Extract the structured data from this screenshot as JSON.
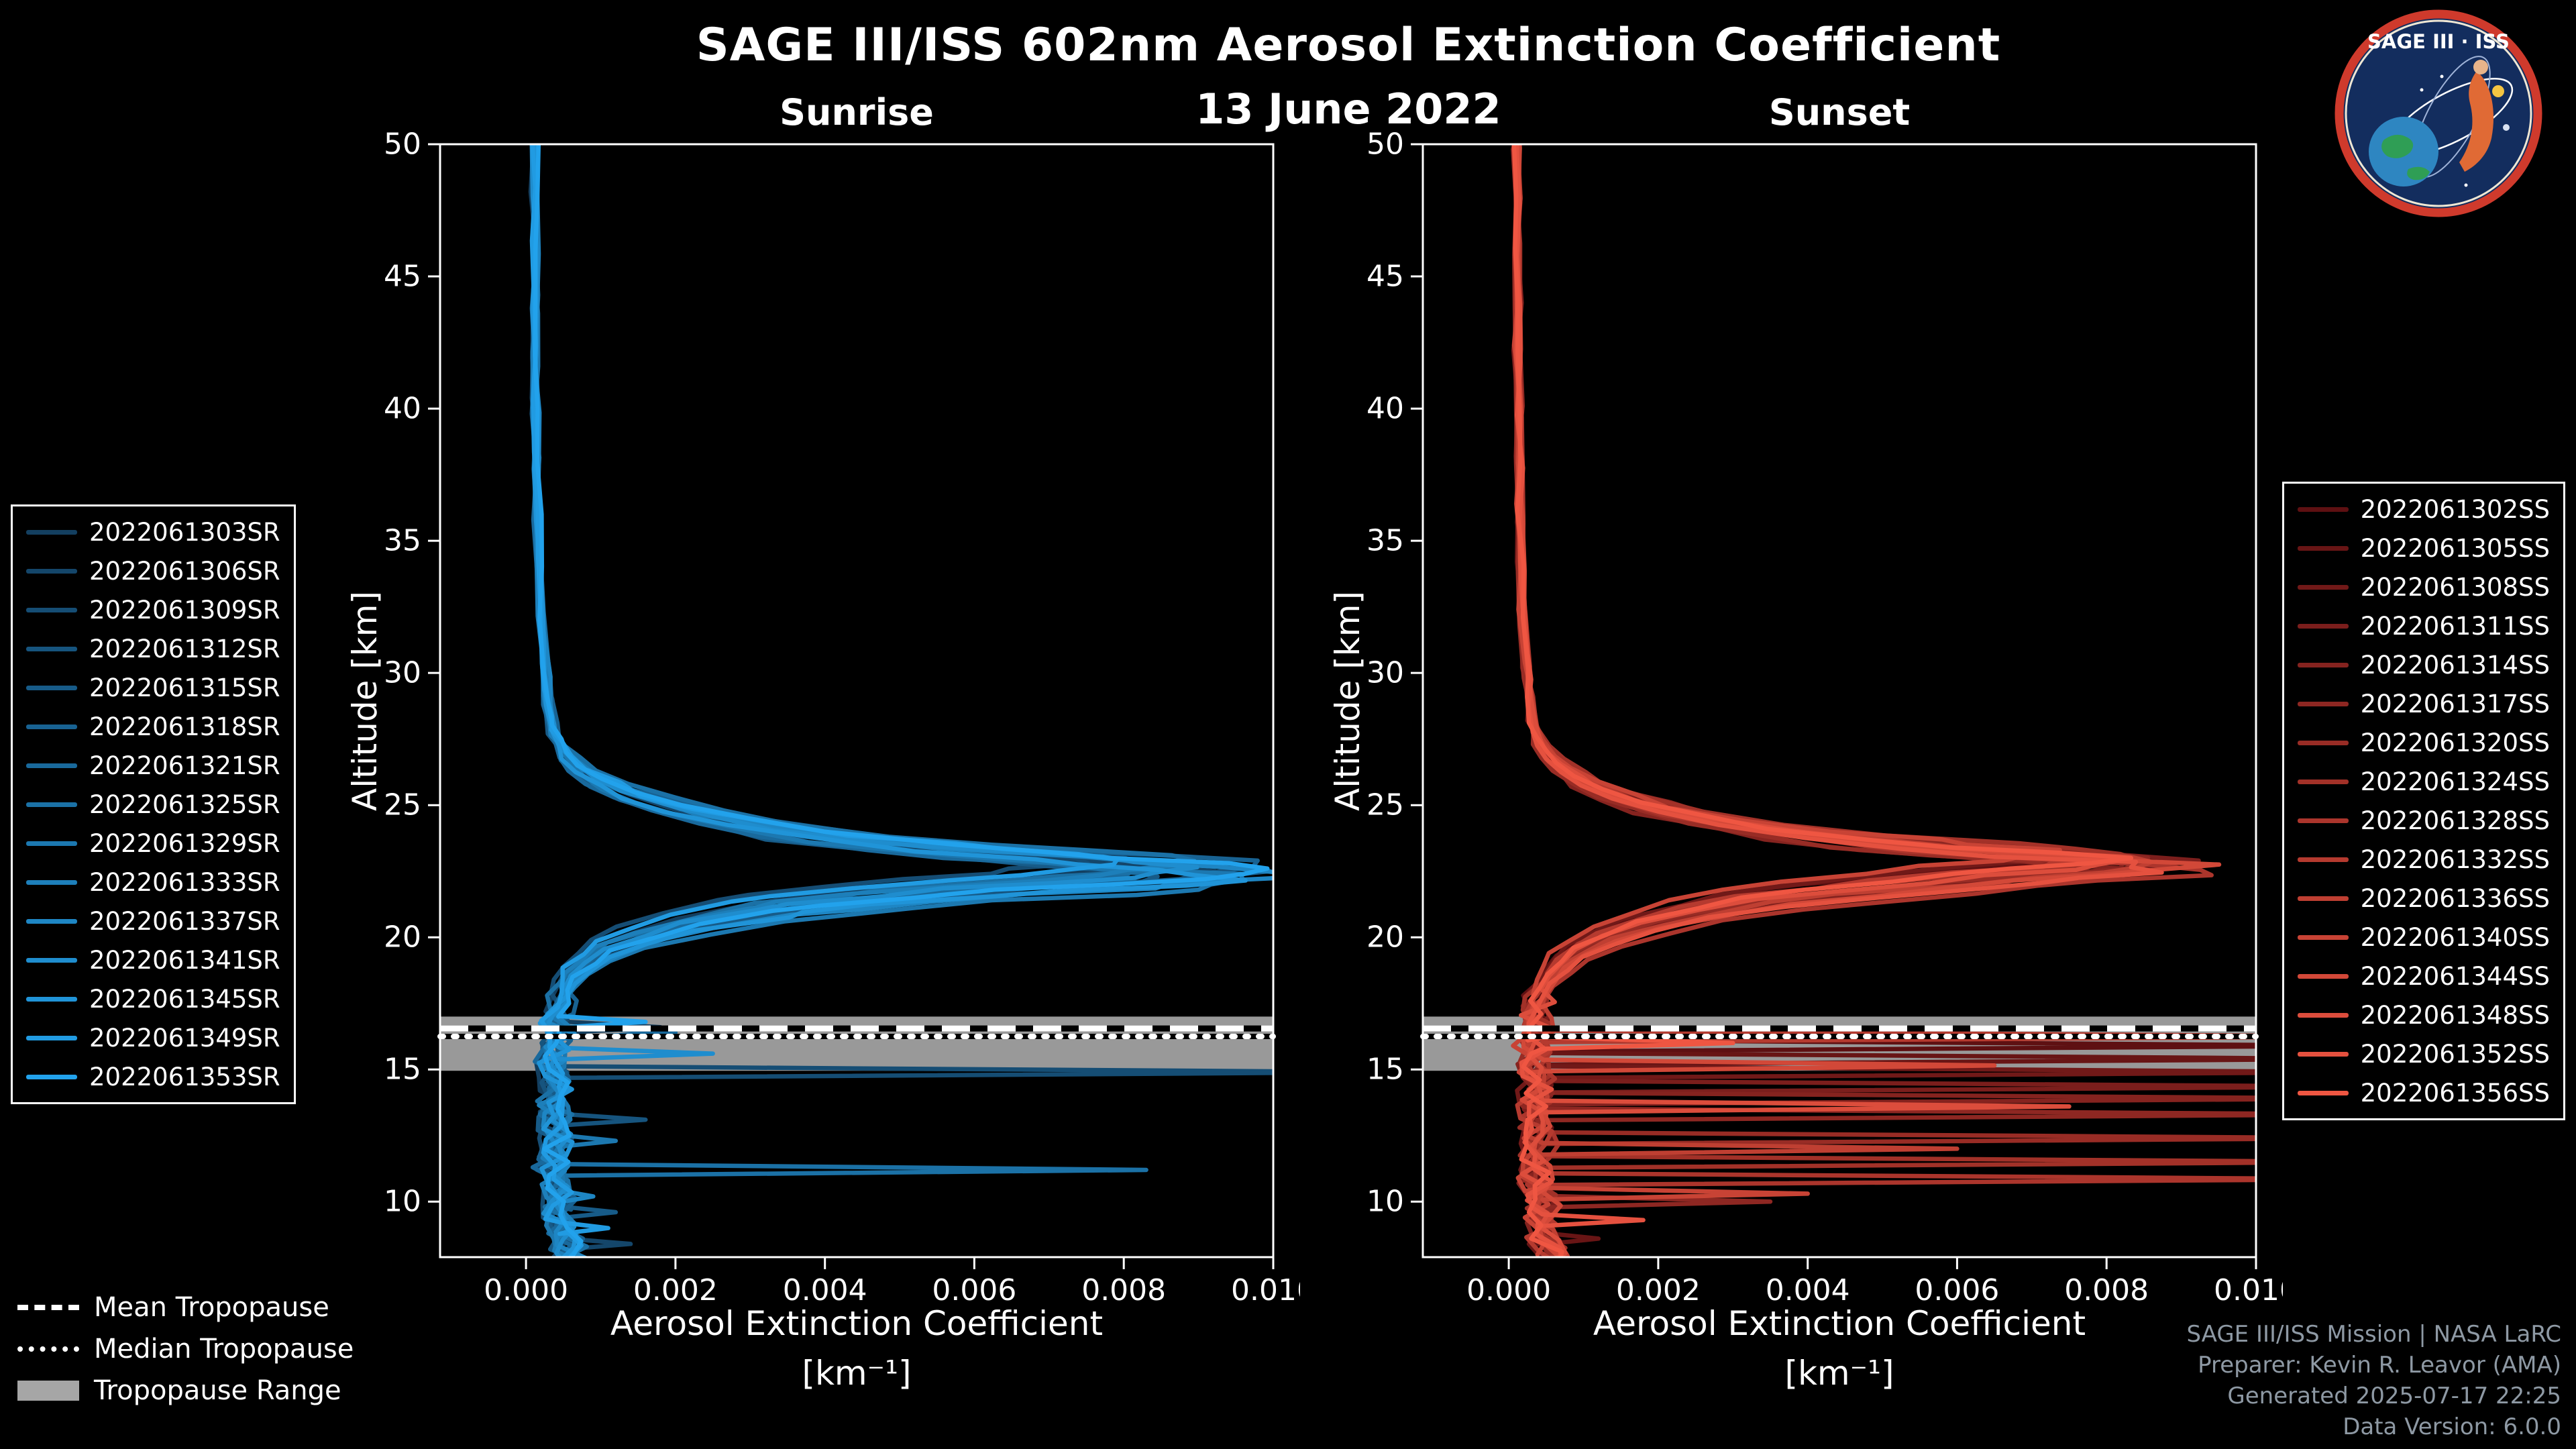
{
  "meta": {
    "title": "SAGE III/ISS 602nm Aerosol Extinction Coefficient",
    "date": "13 June 2022"
  },
  "logo": {
    "title": "SAGE III · ISS"
  },
  "trop_legend": {
    "items": [
      {
        "label": "Mean Tropopause",
        "style": "dashed"
      },
      {
        "label": "Median Tropopause",
        "style": "dotted"
      },
      {
        "label": "Tropopause Range",
        "style": "band"
      }
    ]
  },
  "footer": {
    "lines": [
      "SAGE III/ISS Mission | NASA LaRC",
      "Preparer: Kevin R. Leavor (AMA)",
      "Generated 2025-07-17 22:25",
      "Data Version: 6.0.0"
    ]
  },
  "chart_data": [
    {
      "type": "line",
      "title": "Sunrise",
      "ylabel": "Altitude [km]",
      "xlabel_line1": "Aerosol Extinction Coefficient",
      "xlabel_unit": "[km⁻¹]",
      "xlim": [
        -0.00115,
        0.01
      ],
      "ylim": [
        7.9,
        50
      ],
      "x_ticks": [
        0.0,
        0.002,
        0.004,
        0.006,
        0.008,
        0.01
      ],
      "x_tick_labels": [
        "0.000",
        "0.002",
        "0.004",
        "0.006",
        "0.008",
        "0.010"
      ],
      "y_ticks": [
        10,
        15,
        20,
        25,
        30,
        35,
        40,
        45,
        50
      ],
      "grid": false,
      "legend_position": "outside-left",
      "color_start": "#133f60",
      "color_end": "#22a2ec",
      "trop_color": "#a6a6a6",
      "tropopause": {
        "mean": 16.55,
        "median": 16.25,
        "range": [
          14.95,
          17.0
        ]
      },
      "noise": {
        "rel": 0.12,
        "abs": 0.00045,
        "alt_split": 17.5
      },
      "base_profile": [
        [
          51,
          0.00012
        ],
        [
          50,
          0.00012
        ],
        [
          48,
          0.00012
        ],
        [
          46,
          0.00012
        ],
        [
          44,
          0.00013
        ],
        [
          42,
          0.00013
        ],
        [
          40,
          0.00014
        ],
        [
          38,
          0.00015
        ],
        [
          36,
          0.00016
        ],
        [
          34,
          0.00018
        ],
        [
          32,
          0.0002
        ],
        [
          30,
          0.00026
        ],
        [
          29,
          0.0003
        ],
        [
          28,
          0.00036
        ],
        [
          27.5,
          0.00042
        ],
        [
          27,
          0.00052
        ],
        [
          26.5,
          0.0007
        ],
        [
          26,
          0.00098
        ],
        [
          25.5,
          0.0014
        ],
        [
          25,
          0.0019
        ],
        [
          24.5,
          0.0027
        ],
        [
          24,
          0.0037
        ],
        [
          23.5,
          0.0052
        ],
        [
          23.2,
          0.0066
        ],
        [
          23,
          0.0078
        ],
        [
          22.8,
          0.0088
        ],
        [
          22.6,
          0.0094
        ],
        [
          22.4,
          0.0091
        ],
        [
          22.2,
          0.0084
        ],
        [
          22,
          0.0074
        ],
        [
          21.8,
          0.0062
        ],
        [
          21.5,
          0.0049
        ],
        [
          21.2,
          0.0039
        ],
        [
          21,
          0.0033
        ],
        [
          20.5,
          0.0023
        ],
        [
          20,
          0.0016
        ],
        [
          19.5,
          0.0011
        ],
        [
          19,
          0.00082
        ],
        [
          18.5,
          0.00062
        ],
        [
          18,
          0.0005
        ],
        [
          17.5,
          0.00045
        ],
        [
          17,
          0.0004
        ],
        [
          16.5,
          0.00042
        ],
        [
          16,
          0.00038
        ],
        [
          15.5,
          0.00035
        ],
        [
          15,
          0.0004
        ],
        [
          14.5,
          0.00042
        ],
        [
          14,
          0.00038
        ],
        [
          13.5,
          0.00036
        ],
        [
          13,
          0.0004
        ],
        [
          12.5,
          0.00044
        ],
        [
          12,
          0.0004
        ],
        [
          11.5,
          0.00036
        ],
        [
          11,
          0.0004
        ],
        [
          10.5,
          0.00044
        ],
        [
          10,
          0.0005
        ],
        [
          9.5,
          0.00046
        ],
        [
          9,
          0.0005
        ],
        [
          8.5,
          0.00054
        ],
        [
          8,
          0.0006
        ],
        [
          7.6,
          0.00062
        ]
      ],
      "series": [
        {
          "name": "2022061303SR",
          "scale": 0.88,
          "alt_shift": 0.2,
          "spikes": [
            [
              16.6,
              0.0018
            ]
          ]
        },
        {
          "name": "2022061306SR",
          "scale": 0.97,
          "alt_shift": -0.1,
          "spikes": [
            [
              8.4,
              0.0014
            ]
          ]
        },
        {
          "name": "2022061309SR",
          "scale": 0.8,
          "alt_shift": 0.4,
          "spikes": [
            [
              14.9,
              0.0115
            ]
          ]
        },
        {
          "name": "2022061312SR",
          "scale": 1.02,
          "alt_shift": 0.0,
          "spikes": [
            [
              13.1,
              0.0016
            ]
          ]
        },
        {
          "name": "2022061315SR",
          "scale": 0.92,
          "alt_shift": -0.3,
          "spikes": [
            [
              9.6,
              0.0012
            ]
          ]
        },
        {
          "name": "2022061318SR",
          "scale": 1.06,
          "alt_shift": 0.1,
          "spikes": []
        },
        {
          "name": "2022061321SR",
          "scale": 0.85,
          "alt_shift": -0.2,
          "spikes": [
            [
              16.4,
              0.002
            ]
          ]
        },
        {
          "name": "2022061325SR",
          "scale": 0.99,
          "alt_shift": 0.3,
          "spikes": [
            [
              11.2,
              0.0083
            ]
          ]
        },
        {
          "name": "2022061329SR",
          "scale": 1.04,
          "alt_shift": -0.4,
          "spikes": [
            [
              12.3,
              0.0012
            ]
          ]
        },
        {
          "name": "2022061333SR",
          "scale": 0.9,
          "alt_shift": 0.15,
          "spikes": []
        },
        {
          "name": "2022061337SR",
          "scale": 1.08,
          "alt_shift": -0.15,
          "spikes": [
            [
              10.2,
              0.0009
            ]
          ]
        },
        {
          "name": "2022061341SR",
          "scale": 0.94,
          "alt_shift": 0.05,
          "spikes": [
            [
              15.6,
              0.0025
            ]
          ]
        },
        {
          "name": "2022061345SR",
          "scale": 1.0,
          "alt_shift": -0.25,
          "spikes": []
        },
        {
          "name": "2022061349SR",
          "scale": 0.87,
          "alt_shift": 0.35,
          "spikes": [
            [
              9.0,
              0.0011
            ]
          ]
        },
        {
          "name": "2022061353SR",
          "scale": 1.05,
          "alt_shift": 0.0,
          "spikes": [
            [
              16.8,
              0.0016
            ]
          ]
        }
      ]
    },
    {
      "type": "line",
      "title": "Sunset",
      "ylabel": "Altitude [km]",
      "xlabel_line1": "Aerosol Extinction Coefficient",
      "xlabel_unit": "[km⁻¹]",
      "xlim": [
        -0.00115,
        0.01
      ],
      "ylim": [
        7.9,
        50
      ],
      "x_ticks": [
        0.0,
        0.002,
        0.004,
        0.006,
        0.008,
        0.01
      ],
      "x_tick_labels": [
        "0.000",
        "0.002",
        "0.004",
        "0.006",
        "0.008",
        "0.010"
      ],
      "y_ticks": [
        10,
        15,
        20,
        25,
        30,
        35,
        40,
        45,
        50
      ],
      "grid": false,
      "legend_position": "outside-right",
      "color_start": "#5e1012",
      "color_end": "#ef5642",
      "trop_color": "#a6a6a6",
      "tropopause": {
        "mean": 16.55,
        "median": 16.25,
        "range": [
          14.95,
          17.0
        ]
      },
      "noise": {
        "rel": 0.12,
        "abs": 0.00045,
        "alt_split": 17.5
      },
      "base_profile": [
        [
          51,
          0.00012
        ],
        [
          50,
          0.00012
        ],
        [
          48,
          0.00012
        ],
        [
          46,
          0.00012
        ],
        [
          44,
          0.00013
        ],
        [
          42,
          0.00013
        ],
        [
          40,
          0.00014
        ],
        [
          38,
          0.00015
        ],
        [
          36,
          0.00016
        ],
        [
          34,
          0.00018
        ],
        [
          32,
          0.0002
        ],
        [
          30,
          0.00026
        ],
        [
          29,
          0.0003
        ],
        [
          28,
          0.00036
        ],
        [
          27.5,
          0.00044
        ],
        [
          27,
          0.00054
        ],
        [
          26.5,
          0.00072
        ],
        [
          26,
          0.001
        ],
        [
          25.5,
          0.0014
        ],
        [
          25,
          0.002
        ],
        [
          24.5,
          0.0028
        ],
        [
          24,
          0.0039
        ],
        [
          23.6,
          0.0053
        ],
        [
          23.3,
          0.0068
        ],
        [
          23.1,
          0.008
        ],
        [
          22.9,
          0.0088
        ],
        [
          22.7,
          0.0086
        ],
        [
          22.5,
          0.0079
        ],
        [
          22.3,
          0.007
        ],
        [
          22,
          0.0058
        ],
        [
          21.7,
          0.0046
        ],
        [
          21.4,
          0.0036
        ],
        [
          21,
          0.0028
        ],
        [
          20.5,
          0.002
        ],
        [
          20,
          0.0014
        ],
        [
          19.5,
          0.001
        ],
        [
          19,
          0.00075
        ],
        [
          18.5,
          0.00058
        ],
        [
          18,
          0.00048
        ],
        [
          17.5,
          0.00042
        ],
        [
          17,
          0.00038
        ],
        [
          16.5,
          0.0004
        ],
        [
          16,
          0.00036
        ],
        [
          15.5,
          0.00034
        ],
        [
          15,
          0.00038
        ],
        [
          14.5,
          0.0004
        ],
        [
          14,
          0.00036
        ],
        [
          13.5,
          0.00035
        ],
        [
          13,
          0.00038
        ],
        [
          12.5,
          0.00042
        ],
        [
          12,
          0.00038
        ],
        [
          11.5,
          0.00035
        ],
        [
          11,
          0.00038
        ],
        [
          10.5,
          0.00042
        ],
        [
          10,
          0.00048
        ],
        [
          9.5,
          0.00044
        ],
        [
          9,
          0.00048
        ],
        [
          8.5,
          0.00052
        ],
        [
          8,
          0.00058
        ],
        [
          7.6,
          0.0006
        ]
      ],
      "series": [
        {
          "name": "2022061302SS",
          "scale": 0.86,
          "alt_shift": 0.3,
          "spikes": [
            [
              15.9,
              0.0115
            ]
          ]
        },
        {
          "name": "2022061305SS",
          "scale": 0.95,
          "alt_shift": -0.1,
          "spikes": [
            [
              15.4,
              0.0115
            ],
            [
              8.6,
              0.0012
            ]
          ]
        },
        {
          "name": "2022061308SS",
          "scale": 0.78,
          "alt_shift": 0.2,
          "spikes": [
            [
              14.9,
              0.0115
            ]
          ]
        },
        {
          "name": "2022061311SS",
          "scale": 1.0,
          "alt_shift": 0.0,
          "spikes": [
            [
              14.35,
              0.0115
            ]
          ]
        },
        {
          "name": "2022061314SS",
          "scale": 0.9,
          "alt_shift": -0.3,
          "spikes": [
            [
              13.9,
              0.0115
            ]
          ]
        },
        {
          "name": "2022061317SS",
          "scale": 1.03,
          "alt_shift": 0.1,
          "spikes": [
            [
              13.3,
              0.0115
            ],
            [
              10.0,
              0.0035
            ]
          ]
        },
        {
          "name": "2022061320SS",
          "scale": 0.84,
          "alt_shift": -0.2,
          "spikes": [
            [
              12.4,
              0.0115
            ]
          ]
        },
        {
          "name": "2022061324SS",
          "scale": 0.97,
          "alt_shift": 0.25,
          "spikes": [
            [
              11.5,
              0.0115
            ]
          ]
        },
        {
          "name": "2022061328SS",
          "scale": 1.05,
          "alt_shift": -0.35,
          "spikes": [
            [
              10.85,
              0.0115
            ]
          ]
        },
        {
          "name": "2022061332SS",
          "scale": 0.88,
          "alt_shift": 0.15,
          "spikes": [
            [
              16.25,
              0.0115
            ]
          ]
        },
        {
          "name": "2022061336SS",
          "scale": 0.99,
          "alt_shift": -0.05,
          "spikes": [
            [
              12.0,
              0.006
            ]
          ]
        },
        {
          "name": "2022061340SS",
          "scale": 0.81,
          "alt_shift": 0.4,
          "spikes": [
            [
              10.3,
              0.004
            ]
          ]
        },
        {
          "name": "2022061344SS",
          "scale": 1.02,
          "alt_shift": -0.15,
          "spikes": [
            [
              15.15,
              0.0065
            ]
          ]
        },
        {
          "name": "2022061348SS",
          "scale": 0.93,
          "alt_shift": 0.05,
          "spikes": [
            [
              13.6,
              0.0075
            ]
          ]
        },
        {
          "name": "2022061352SS",
          "scale": 1.0,
          "alt_shift": -0.25,
          "spikes": [
            [
              9.3,
              0.0018
            ]
          ]
        },
        {
          "name": "2022061356SS",
          "scale": 0.9,
          "alt_shift": 0.1,
          "spikes": [
            [
              16.0,
              0.003
            ]
          ]
        }
      ]
    }
  ]
}
